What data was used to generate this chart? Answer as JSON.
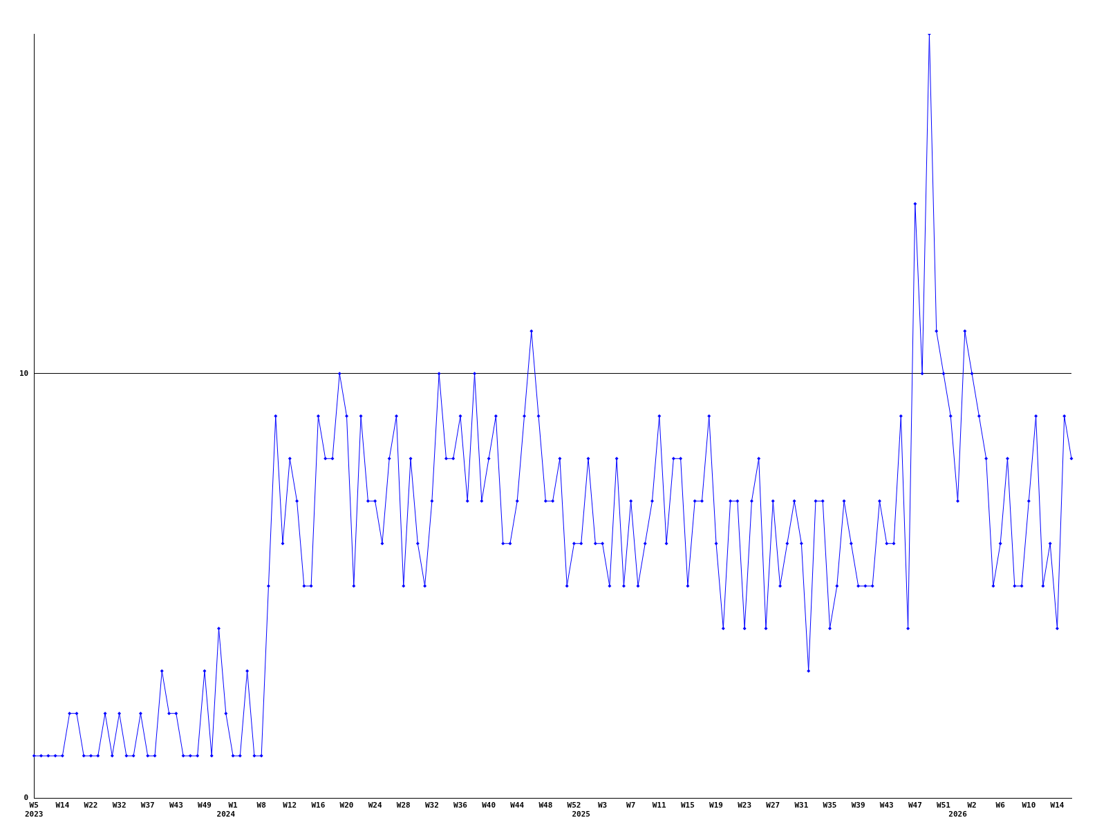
{
  "chart_data": {
    "type": "line",
    "categories": [
      "W5\n2023",
      null,
      null,
      null,
      "W14",
      null,
      null,
      null,
      "W22",
      null,
      null,
      null,
      "W32",
      null,
      null,
      null,
      "W37",
      null,
      null,
      null,
      "W43",
      null,
      null,
      null,
      "W49",
      null,
      null,
      "\n2024",
      "W1",
      null,
      null,
      null,
      "W8",
      null,
      null,
      null,
      "W12",
      null,
      null,
      null,
      "W16",
      null,
      null,
      null,
      "W20",
      null,
      null,
      null,
      "W24",
      null,
      null,
      null,
      "W28",
      null,
      null,
      null,
      "W32",
      null,
      null,
      null,
      "W36",
      null,
      null,
      null,
      "W40",
      null,
      null,
      null,
      "W44",
      null,
      null,
      null,
      "W48",
      null,
      null,
      null,
      "W52",
      "\n2025",
      null,
      null,
      "W3",
      null,
      null,
      null,
      "W7",
      null,
      null,
      null,
      "W11",
      null,
      null,
      null,
      "W15",
      null,
      null,
      null,
      "W19",
      null,
      null,
      null,
      "W23",
      null,
      null,
      null,
      "W27",
      null,
      null,
      null,
      "W31",
      null,
      null,
      null,
      "W35",
      null,
      null,
      null,
      "W39",
      null,
      null,
      null,
      "W43",
      null,
      null,
      null,
      "W47",
      null,
      null,
      null,
      "W51",
      null,
      "\n2026",
      null,
      "W2",
      null,
      null,
      null,
      "W6",
      null,
      null,
      null,
      "W10",
      null,
      null,
      null,
      "W14",
      null,
      null
    ],
    "series": [
      {
        "color": "#0000ff",
        "values": [
          1,
          1,
          1,
          1,
          1,
          2,
          2,
          1,
          1,
          1,
          2,
          1,
          2,
          1,
          1,
          2,
          1,
          1,
          3,
          2,
          2,
          1,
          1,
          1,
          3,
          1,
          4,
          2,
          1,
          1,
          3,
          1,
          1,
          5,
          9,
          6,
          8,
          7,
          5,
          5,
          9,
          8,
          8,
          10,
          9,
          5,
          9,
          7,
          7,
          6,
          8,
          9,
          5,
          8,
          6,
          5,
          7,
          10,
          8,
          8,
          9,
          7,
          10,
          7,
          8,
          9,
          6,
          6,
          7,
          9,
          11,
          9,
          7,
          7,
          8,
          5,
          6,
          6,
          8,
          6,
          6,
          5,
          8,
          5,
          7,
          5,
          6,
          7,
          9,
          6,
          8,
          8,
          5,
          7,
          7,
          9,
          6,
          4,
          7,
          7,
          4,
          7,
          8,
          4,
          7,
          5,
          6,
          7,
          6,
          3,
          7,
          7,
          4,
          5,
          7,
          6,
          5,
          5,
          5,
          7,
          6,
          6,
          9,
          4,
          14,
          10,
          18,
          11,
          10,
          9,
          7,
          11,
          10,
          9,
          8,
          5,
          6,
          8,
          5,
          5,
          7,
          9,
          5,
          6,
          4,
          9,
          8
        ]
      }
    ],
    "ylim": [
      0,
      18
    ],
    "yticks": [
      0,
      10
    ],
    "grid": "y",
    "legend": false,
    "marker": "diamond",
    "line_style": "solid"
  }
}
